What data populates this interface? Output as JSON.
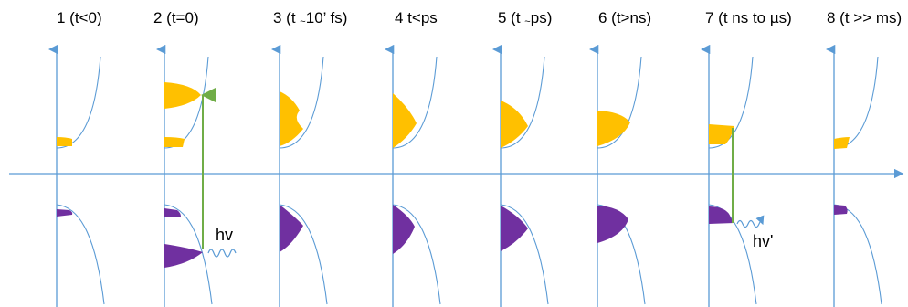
{
  "stages": [
    {
      "label": "1 (t<0)"
    },
    {
      "label": "2 (t=0)"
    },
    {
      "label_pre": "3 (t ",
      "label_tilde": "~",
      "label_post": "10’ fs)"
    },
    {
      "label": "4 t<ps"
    },
    {
      "label_pre": "5 (t ",
      "label_tilde": "~",
      "label_post": "ps)"
    },
    {
      "label": "6 (t>ns)"
    },
    {
      "label": "7  (t ns to µs)"
    },
    {
      "label": "8 (t >> ms)"
    }
  ],
  "annotations": {
    "absorption": "hv",
    "emission": "hv'"
  },
  "colors": {
    "axis": "#5b9bd5",
    "band": "#5b9bd5",
    "electrons": "#ffc000",
    "holes": "#7030a0",
    "transition": "#70ad47"
  }
}
